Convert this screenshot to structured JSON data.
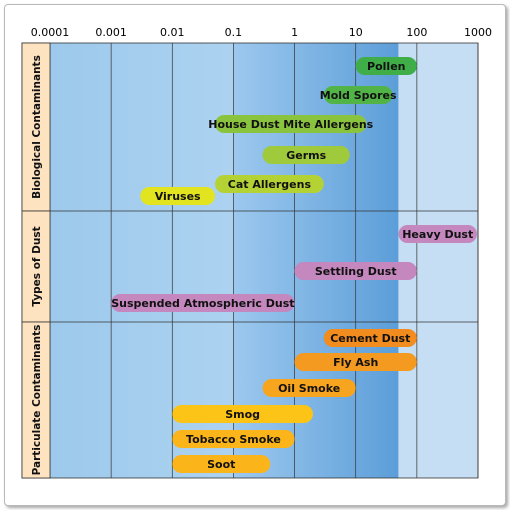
{
  "chart_data": {
    "type": "range-bar",
    "x_scale": "log",
    "xlim": [
      0.0001,
      1000
    ],
    "x_ticks": [
      "0.0001",
      "0.001",
      "0.01",
      "0.1",
      "1",
      "10",
      "100",
      "1000"
    ],
    "groups": [
      {
        "label": "Biological Contaminants",
        "color": "#7ac143",
        "items": [
          {
            "label": "Pollen",
            "min": 10,
            "max": 100,
            "color": "#3fae49"
          },
          {
            "label": "Mold Spores",
            "min": 3,
            "max": 40,
            "color": "#52b447"
          },
          {
            "label": "House Dust Mite Allergens",
            "min": 0.05,
            "max": 15,
            "color": "#8ac43f"
          },
          {
            "label": "Germs",
            "min": 0.3,
            "max": 8,
            "color": "#9fca3b"
          },
          {
            "label": "Cat Allergens",
            "min": 0.05,
            "max": 3,
            "color": "#b5d235"
          },
          {
            "label": "Viruses",
            "min": 0.003,
            "max": 0.05,
            "color": "#e2e420"
          }
        ]
      },
      {
        "label": "Types of Dust",
        "color": "#c487be",
        "items": [
          {
            "label": "Heavy Dust",
            "min": 50,
            "max": 1000,
            "color": "#c487be"
          },
          {
            "label": "Settling Dust",
            "min": 1,
            "max": 100,
            "color": "#c487be"
          },
          {
            "label": "Suspended Atmospheric Dust",
            "min": 0.001,
            "max": 1,
            "color": "#c487be"
          }
        ]
      },
      {
        "label": "Particulate Contaminants",
        "color": "#f59a20",
        "items": [
          {
            "label": "Cement Dust",
            "min": 3,
            "max": 100,
            "color": "#f28c1e"
          },
          {
            "label": "Fly Ash",
            "min": 1,
            "max": 100,
            "color": "#f59a20"
          },
          {
            "label": "Oil Smoke",
            "min": 0.3,
            "max": 10,
            "color": "#f7a51f"
          },
          {
            "label": "Smog",
            "min": 0.01,
            "max": 2,
            "color": "#fbc416"
          },
          {
            "label": "Tobacco Smoke",
            "min": 0.01,
            "max": 1,
            "color": "#fbb51b"
          },
          {
            "label": "Soot",
            "min": 0.01,
            "max": 0.4,
            "color": "#fbb51b"
          }
        ]
      }
    ],
    "background_bands": [
      {
        "from": 0.0001,
        "to": 0.1,
        "color": "#a6cdec"
      },
      {
        "from": 0.1,
        "to": 50,
        "color": "#7fb6e5"
      },
      {
        "from": 50,
        "to": 1000,
        "color": "#c5def4"
      }
    ],
    "grid": true
  }
}
